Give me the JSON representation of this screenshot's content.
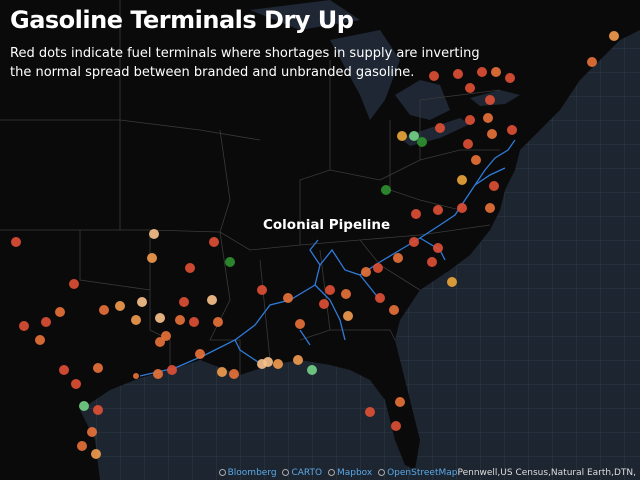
{
  "header": {
    "title": "Gasoline Terminals Dry Up",
    "subtitle": "Red dots indicate fuel terminals where shortages in supply are inverting the normal spread between branded and unbranded gasoline."
  },
  "map": {
    "labels": [
      "Colonial Pipeline"
    ]
  },
  "attribution": {
    "links": [
      "Bloomberg",
      "CARTO",
      "Mapbox",
      "OpenStreetMap"
    ],
    "text": "Pennwell,US Census,Natural Earth,DTN,"
  }
}
